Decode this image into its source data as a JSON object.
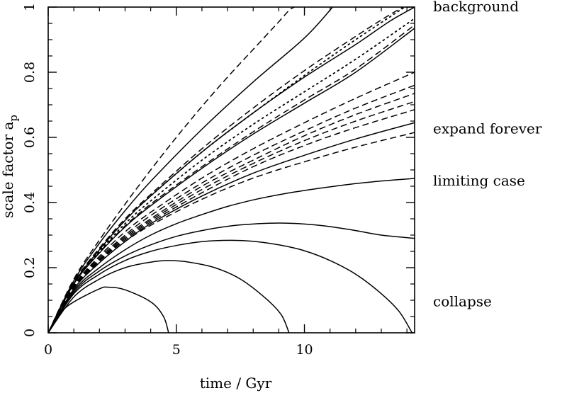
{
  "chart_data": {
    "type": "line",
    "title": "",
    "xlabel": "time / Gyr",
    "ylabel": "scale factor a",
    "ylabel_subscript": "p",
    "xlim": [
      0,
      14.3
    ],
    "ylim": [
      0,
      1
    ],
    "xticks": [
      0,
      5,
      10
    ],
    "yticks": [
      0,
      0.2,
      0.4,
      0.6,
      0.8,
      1
    ],
    "ytick_labels": [
      "0",
      "0.2",
      "0.4",
      "0.6",
      "0.8",
      "1"
    ],
    "grid": false,
    "annotations": [
      {
        "text": "background",
        "y": 1.0
      },
      {
        "text": "expand forever",
        "y": 0.625
      },
      {
        "text": "limiting case",
        "y": 0.465
      },
      {
        "text": "collapse",
        "y": 0.095
      }
    ],
    "series": [
      {
        "style": "solid",
        "kind": "closed",
        "t_max": 4.7,
        "points": [
          [
            0,
            0
          ],
          [
            0.5,
            0.062
          ],
          [
            1,
            0.095
          ],
          [
            2,
            0.135
          ],
          [
            2.35,
            0.14
          ],
          [
            3,
            0.132
          ],
          [
            4,
            0.095
          ],
          [
            4.5,
            0.05
          ],
          [
            4.7,
            0
          ]
        ]
      },
      {
        "style": "solid",
        "kind": "closed",
        "t_max": 9.4,
        "points": [
          [
            0,
            0
          ],
          [
            1,
            0.11
          ],
          [
            2,
            0.165
          ],
          [
            3,
            0.2
          ],
          [
            4,
            0.217
          ],
          [
            4.7,
            0.222
          ],
          [
            5.5,
            0.217
          ],
          [
            6.5,
            0.2
          ],
          [
            7.5,
            0.165
          ],
          [
            8.5,
            0.105
          ],
          [
            9.1,
            0.055
          ],
          [
            9.4,
            0
          ]
        ]
      },
      {
        "style": "solid",
        "kind": "closed",
        "t_max": 14.2,
        "points": [
          [
            0,
            0
          ],
          [
            1,
            0.12
          ],
          [
            2,
            0.18
          ],
          [
            3,
            0.222
          ],
          [
            4,
            0.25
          ],
          [
            5,
            0.268
          ],
          [
            6,
            0.28
          ],
          [
            7.1,
            0.284
          ],
          [
            8,
            0.281
          ],
          [
            9,
            0.27
          ],
          [
            10,
            0.252
          ],
          [
            11,
            0.222
          ],
          [
            12,
            0.18
          ],
          [
            13,
            0.12
          ],
          [
            13.7,
            0.065
          ],
          [
            14.2,
            0
          ]
        ]
      },
      {
        "style": "solid",
        "kind": "closed",
        "points": [
          [
            0,
            0
          ],
          [
            1,
            0.125
          ],
          [
            2,
            0.19
          ],
          [
            3,
            0.236
          ],
          [
            4,
            0.27
          ],
          [
            5,
            0.296
          ],
          [
            6,
            0.314
          ],
          [
            7,
            0.327
          ],
          [
            8,
            0.334
          ],
          [
            9,
            0.337
          ],
          [
            10,
            0.334
          ],
          [
            11,
            0.326
          ],
          [
            12,
            0.314
          ],
          [
            13,
            0.3
          ],
          [
            14.3,
            0.29
          ]
        ]
      },
      {
        "style": "solid",
        "kind": "open",
        "points": [
          [
            0,
            0
          ],
          [
            1,
            0.13
          ],
          [
            2,
            0.2
          ],
          [
            3,
            0.255
          ],
          [
            4,
            0.3
          ],
          [
            5,
            0.335
          ],
          [
            6,
            0.363
          ],
          [
            7,
            0.388
          ],
          [
            8,
            0.408
          ],
          [
            9,
            0.424
          ],
          [
            10,
            0.437
          ],
          [
            11,
            0.448
          ],
          [
            12,
            0.458
          ],
          [
            13,
            0.466
          ],
          [
            14.3,
            0.474
          ]
        ]
      },
      {
        "style": "solid",
        "kind": "open",
        "points": [
          [
            0,
            0
          ],
          [
            1,
            0.135
          ],
          [
            2,
            0.215
          ],
          [
            3,
            0.28
          ],
          [
            4,
            0.335
          ],
          [
            6,
            0.42
          ],
          [
            8,
            0.49
          ],
          [
            10,
            0.545
          ],
          [
            12,
            0.595
          ],
          [
            14.3,
            0.645
          ]
        ]
      },
      {
        "style": "dashed",
        "kind": "open",
        "points": [
          [
            0,
            0
          ],
          [
            1,
            0.135
          ],
          [
            2,
            0.215
          ],
          [
            3,
            0.28
          ],
          [
            4,
            0.33
          ],
          [
            6,
            0.41
          ],
          [
            8,
            0.475
          ],
          [
            10,
            0.525
          ],
          [
            12,
            0.57
          ],
          [
            14.3,
            0.615
          ]
        ]
      },
      {
        "style": "dashed",
        "kind": "open",
        "points": [
          [
            0,
            0
          ],
          [
            1,
            0.137
          ],
          [
            2,
            0.22
          ],
          [
            3,
            0.285
          ],
          [
            4,
            0.34
          ],
          [
            6,
            0.43
          ],
          [
            8,
            0.51
          ],
          [
            10,
            0.575
          ],
          [
            12,
            0.63
          ],
          [
            14.3,
            0.685
          ]
        ]
      },
      {
        "style": "dashed",
        "kind": "open",
        "points": [
          [
            0,
            0
          ],
          [
            1,
            0.138
          ],
          [
            2,
            0.222
          ],
          [
            3,
            0.29
          ],
          [
            4,
            0.345
          ],
          [
            6,
            0.44
          ],
          [
            8,
            0.52
          ],
          [
            10,
            0.59
          ],
          [
            12,
            0.65
          ],
          [
            14.3,
            0.71
          ]
        ]
      },
      {
        "style": "dashed",
        "kind": "open",
        "points": [
          [
            0,
            0
          ],
          [
            1,
            0.14
          ],
          [
            2,
            0.225
          ],
          [
            3,
            0.295
          ],
          [
            4,
            0.35
          ],
          [
            6,
            0.45
          ],
          [
            8,
            0.53
          ],
          [
            10,
            0.605
          ],
          [
            12,
            0.67
          ],
          [
            14.3,
            0.735
          ]
        ]
      },
      {
        "style": "dashed",
        "kind": "open",
        "points": [
          [
            0,
            0
          ],
          [
            1,
            0.142
          ],
          [
            2,
            0.23
          ],
          [
            3,
            0.3
          ],
          [
            4,
            0.36
          ],
          [
            6,
            0.46
          ],
          [
            8,
            0.545
          ],
          [
            10,
            0.62
          ],
          [
            12,
            0.69
          ],
          [
            14.3,
            0.76
          ]
        ]
      },
      {
        "style": "dashed",
        "kind": "open",
        "points": [
          [
            0,
            0
          ],
          [
            1,
            0.145
          ],
          [
            2,
            0.235
          ],
          [
            3,
            0.31
          ],
          [
            4,
            0.37
          ],
          [
            6,
            0.475
          ],
          [
            8,
            0.565
          ],
          [
            10,
            0.645
          ],
          [
            12,
            0.72
          ],
          [
            14.3,
            0.8
          ]
        ]
      },
      {
        "style": "solid",
        "kind": "open",
        "points": [
          [
            0,
            0
          ],
          [
            1,
            0.15
          ],
          [
            2,
            0.245
          ],
          [
            3,
            0.325
          ],
          [
            4,
            0.39
          ],
          [
            6,
            0.505
          ],
          [
            8,
            0.61
          ],
          [
            10,
            0.705
          ],
          [
            12,
            0.8
          ],
          [
            14.3,
            0.935
          ]
        ]
      },
      {
        "style": "dashed",
        "kind": "open",
        "points": [
          [
            0,
            0
          ],
          [
            1,
            0.15
          ],
          [
            2,
            0.247
          ],
          [
            3,
            0.328
          ],
          [
            4,
            0.395
          ],
          [
            6,
            0.51
          ],
          [
            8,
            0.617
          ],
          [
            10,
            0.715
          ],
          [
            12,
            0.81
          ],
          [
            14.3,
            0.945
          ]
        ]
      },
      {
        "style": "dotted",
        "kind": "open",
        "points": [
          [
            0,
            0
          ],
          [
            1,
            0.15
          ],
          [
            2,
            0.25
          ],
          [
            3,
            0.335
          ],
          [
            4,
            0.405
          ],
          [
            6,
            0.53
          ],
          [
            8,
            0.64
          ],
          [
            10,
            0.74
          ],
          [
            12,
            0.84
          ],
          [
            14.3,
            0.965
          ]
        ]
      },
      {
        "style": "dotted",
        "kind": "open",
        "points": [
          [
            0,
            0
          ],
          [
            1,
            0.152
          ],
          [
            2,
            0.255
          ],
          [
            3,
            0.345
          ],
          [
            4,
            0.42
          ],
          [
            6,
            0.555
          ],
          [
            8,
            0.675
          ],
          [
            10,
            0.79
          ],
          [
            12,
            0.9
          ],
          [
            14.3,
            1.02
          ]
        ]
      },
      {
        "style": "solid",
        "kind": "open",
        "points": [
          [
            0,
            0
          ],
          [
            1,
            0.152
          ],
          [
            2,
            0.255
          ],
          [
            3,
            0.345
          ],
          [
            4,
            0.42
          ],
          [
            6,
            0.555
          ],
          [
            8,
            0.675
          ],
          [
            10,
            0.785
          ],
          [
            12,
            0.885
          ],
          [
            13.3,
            0.955
          ],
          [
            14.3,
            1.0
          ]
        ]
      },
      {
        "style": "dashed",
        "kind": "open",
        "points": [
          [
            0,
            0
          ],
          [
            1,
            0.155
          ],
          [
            2,
            0.26
          ],
          [
            3,
            0.35
          ],
          [
            4,
            0.425
          ],
          [
            6,
            0.565
          ],
          [
            8,
            0.69
          ],
          [
            10,
            0.805
          ],
          [
            12,
            0.91
          ],
          [
            13.3,
            0.975
          ],
          [
            14.3,
            1.02
          ]
        ]
      },
      {
        "style": "solid",
        "kind": "open",
        "points": [
          [
            0,
            0
          ],
          [
            1,
            0.16
          ],
          [
            2,
            0.275
          ],
          [
            3,
            0.375
          ],
          [
            4,
            0.465
          ],
          [
            6,
            0.625
          ],
          [
            8,
            0.77
          ],
          [
            10,
            0.905
          ],
          [
            11.1,
            1.0
          ]
        ]
      },
      {
        "style": "dashed",
        "kind": "open",
        "points": [
          [
            0,
            0
          ],
          [
            1,
            0.165
          ],
          [
            2,
            0.285
          ],
          [
            3,
            0.395
          ],
          [
            4,
            0.5
          ],
          [
            5,
            0.6
          ],
          [
            6,
            0.695
          ],
          [
            7,
            0.785
          ],
          [
            8,
            0.87
          ],
          [
            9,
            0.955
          ],
          [
            9.4,
            0.99
          ],
          [
            9.6,
            1.0
          ]
        ]
      }
    ]
  }
}
